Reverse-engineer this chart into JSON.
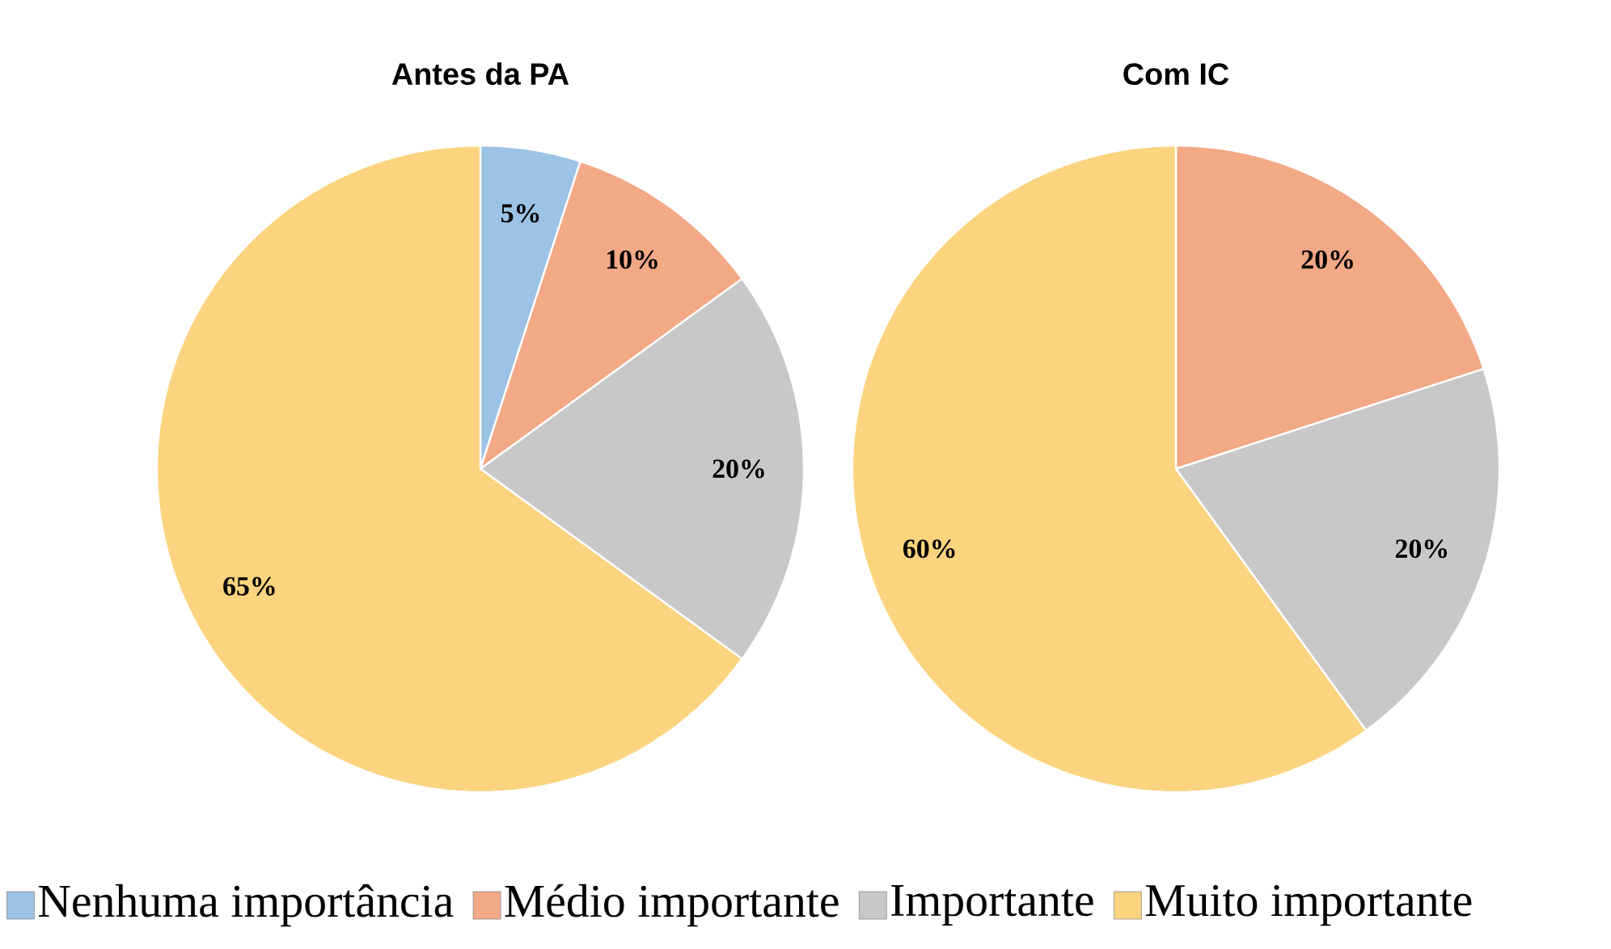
{
  "chart_data": [
    {
      "type": "pie",
      "title": "Antes da PA",
      "categories": [
        "Nenhuma importância",
        "Médio importante",
        "Importante",
        "Muito importante"
      ],
      "values": [
        5,
        10,
        20,
        65
      ],
      "value_labels": [
        "5%",
        "10%",
        "20%",
        "65%"
      ],
      "colors": [
        "#9cc2e5",
        "#f3a886",
        "#c8c8c8",
        "#fcd47f"
      ],
      "legend": "bottom"
    },
    {
      "type": "pie",
      "title": "Com IC",
      "categories": [
        null,
        null,
        null,
        null
      ],
      "values": [
        0,
        20,
        20,
        60
      ],
      "value_labels": [
        null,
        "20%",
        "20%",
        "60%"
      ],
      "colors": [
        "#9cc2e5",
        "#f3a886",
        "#c8c8c8",
        "#fcd47f"
      ]
    }
  ]
}
